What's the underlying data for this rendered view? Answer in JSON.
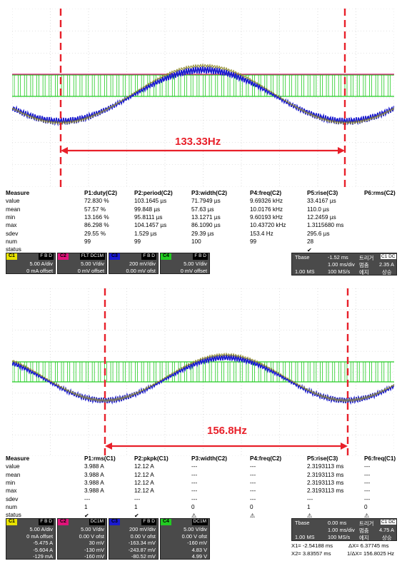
{
  "colors": {
    "c1": "#e8e200",
    "c2": "#e0147a",
    "c3": "#1a1ad0",
    "c4": "#22cc22",
    "annotation": "#e8202a",
    "panel": "#4a4a4a"
  },
  "top": {
    "annotation": "133.33Hz",
    "measure": {
      "header": [
        "Measure",
        "P1:duty(C2)",
        "P2:period(C2)",
        "P3:width(C2)",
        "P4:freq(C2)",
        "P5:rise(C3)",
        "P6:rms(C2)"
      ],
      "rows": [
        [
          "value",
          "72.830 %",
          "103.1645 µs",
          "71.7949 µs",
          "9.69326 kHz",
          "33.4167 µs",
          ""
        ],
        [
          "mean",
          "57.57 %",
          "99.848 µs",
          "57.63 µs",
          "10.0176 kHz",
          "110.0 µs",
          ""
        ],
        [
          "min",
          "13.166 %",
          "95.8111 µs",
          "13.1271 µs",
          "9.60193 kHz",
          "12.2459 µs",
          ""
        ],
        [
          "max",
          "86.298 %",
          "104.1457 µs",
          "86.1090 µs",
          "10.43720 kHz",
          "1.3115680 ms",
          ""
        ],
        [
          "sdev",
          "29.55 %",
          "1.529 µs",
          "29.39 µs",
          "153.4 Hz",
          "295.6 µs",
          ""
        ],
        [
          "num",
          "99",
          "99",
          "100",
          "99",
          "28",
          ""
        ],
        [
          "status",
          "",
          "",
          "",
          "",
          "✔",
          ""
        ]
      ]
    },
    "channels": [
      {
        "tag": "C1",
        "flag": "F B D",
        "scale": "5.00 A/div",
        "offset": "0 mA offset",
        "color": "#e8e200"
      },
      {
        "tag": "C2",
        "flag": "FLT DC1M",
        "scale": "5.00 V/div",
        "offset": "0 mV offset",
        "color": "#e0147a"
      },
      {
        "tag": "C3",
        "flag": "F B D",
        "scale": "200 mV/div",
        "offset": "0.00 mV ofst",
        "color": "#1a1ad0"
      },
      {
        "tag": "C4",
        "flag": "F B D",
        "scale": "5.00 V/div",
        "offset": "0 mV offset",
        "color": "#22cc22"
      }
    ],
    "tbase": {
      "label": "Tbase",
      "value": "-1.52 ms",
      "div": "1.00 ms/div",
      "rate1": "1.00 MS",
      "rate2": "100 MS/s",
      "trig": "트리거",
      "trigch": "C1 DC",
      "mode1": "멈춤",
      "level": "2.35 A",
      "mode2": "에지",
      "slope": "상승"
    }
  },
  "bottom": {
    "annotation": "156.8Hz",
    "measure": {
      "header": [
        "Measure",
        "P1:rms(C1)",
        "P2:pkpk(C1)",
        "P3:width(C2)",
        "P4:freq(C2)",
        "P5:rise(C3)",
        "P6:freq(C1)"
      ],
      "rows": [
        [
          "value",
          "3.988 A",
          "12.12 A",
          "---",
          "---",
          "2.3193113 ms",
          "---"
        ],
        [
          "mean",
          "3.988 A",
          "12.12 A",
          "---",
          "---",
          "2.3193113 ms",
          "---"
        ],
        [
          "min",
          "3.988 A",
          "12.12 A",
          "---",
          "---",
          "2.3193113 ms",
          "---"
        ],
        [
          "max",
          "3.988 A",
          "12.12 A",
          "---",
          "---",
          "2.3193113 ms",
          "---"
        ],
        [
          "sdev",
          "---",
          "---",
          "---",
          "---",
          "---",
          "---"
        ],
        [
          "num",
          "1",
          "1",
          "0",
          "0",
          "1",
          "0"
        ],
        [
          "status",
          "✔",
          "✔",
          "⚠",
          "⚠",
          "⚠",
          "⚠"
        ]
      ]
    },
    "channels": [
      {
        "tag": "C1",
        "flag": "F B D",
        "scale": "5.00 A/div",
        "offset": "0 mA offset",
        "l1": "-5.475 A",
        "l2": "-5.604 A",
        "l3": "-129 mA",
        "color": "#e8e200"
      },
      {
        "tag": "C2",
        "flag": "DC1M",
        "scale": "5.00 V/div",
        "offset": "0.00 V ofst",
        "l1": "30 mV",
        "l2": "-130 mV",
        "l3": "-160 mV",
        "color": "#e0147a"
      },
      {
        "tag": "C3",
        "flag": "F B D",
        "scale": "200 mV/div",
        "offset": "0.00 V ofst",
        "l1": "-163.34 mV",
        "l2": "-243.87 mV",
        "l3": "-80.52 mV",
        "color": "#1a1ad0"
      },
      {
        "tag": "C4",
        "flag": "DC1M",
        "scale": "5.00 V/div",
        "offset": "0.00 V ofst",
        "l1": "-160 mV",
        "l2": "4.83 V",
        "l3": "4.99 V",
        "color": "#22cc22"
      }
    ],
    "tbase": {
      "label": "Tbase",
      "value": "0.00 ms",
      "div": "1.00 ms/div",
      "rate1": "1.00 MS",
      "rate2": "100 MS/s",
      "trig": "트리거",
      "trigch": "C1 DC",
      "mode1": "멈춤",
      "level": "4.75 A",
      "mode2": "에지",
      "slope": "상승"
    },
    "cursors": {
      "x1": "X1= -2.54188 ms",
      "dx": "ΔX= 6.37745 ms",
      "x2": "X2= 3.83557 ms",
      "inv": "1/ΔX= 156.8025 Hz"
    }
  }
}
